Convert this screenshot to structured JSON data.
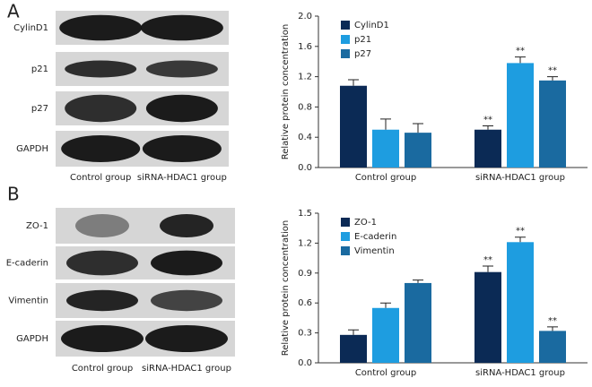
{
  "blots": [
    {
      "panel": "A",
      "rows": [
        "CylinD1",
        "p21",
        "p27",
        "GAPDH"
      ],
      "columns": [
        "Control group",
        "siRNA-HDAC1 group"
      ]
    },
    {
      "panel": "B",
      "rows": [
        "ZO-1",
        "E-caderin",
        "Vimentin",
        "GAPDH"
      ],
      "columns": [
        "Control group",
        "siRNA-HDAC1 group"
      ]
    }
  ],
  "chart_data": [
    {
      "type": "bar",
      "y_label": "Relative protein concentration",
      "categories": [
        "Control group",
        "siRNA-HDAC1 group"
      ],
      "series": [
        {
          "name": "CylinD1",
          "color": "#0b2a55",
          "values": [
            1.08,
            0.5
          ],
          "errors": [
            0.08,
            0.05
          ],
          "annotations": [
            null,
            "**"
          ]
        },
        {
          "name": "p21",
          "color": "#1e9de0",
          "values": [
            0.5,
            1.38
          ],
          "errors": [
            0.14,
            0.08
          ],
          "annotations": [
            null,
            "**"
          ]
        },
        {
          "name": "p27",
          "color": "#1a6aa0",
          "values": [
            0.46,
            1.15
          ],
          "errors": [
            0.12,
            0.05
          ],
          "annotations": [
            null,
            "**"
          ]
        }
      ],
      "ylim": [
        0,
        2.0
      ],
      "yticks": [
        {
          "value": 0,
          "label": "0.0"
        },
        0.4,
        0.8,
        1.2,
        1.6,
        {
          "value": 2.0,
          "label": "2.0"
        }
      ],
      "legend": "upper left"
    },
    {
      "type": "bar",
      "y_label": "Relative protein concentration",
      "categories": [
        "Control group",
        "siRNA-HDAC1 group"
      ],
      "series": [
        {
          "name": "ZO-1",
          "color": "#0b2a55",
          "values": [
            0.28,
            0.91
          ],
          "errors": [
            0.05,
            0.06
          ],
          "annotations": [
            null,
            "**"
          ]
        },
        {
          "name": "E-caderin",
          "color": "#1e9de0",
          "values": [
            0.55,
            1.21
          ],
          "errors": [
            0.05,
            0.05
          ],
          "annotations": [
            null,
            "**"
          ]
        },
        {
          "name": "Vimentin",
          "color": "#1a6aa0",
          "values": [
            0.8,
            0.32
          ],
          "errors": [
            0.03,
            0.04
          ],
          "annotations": [
            null,
            "**"
          ]
        }
      ],
      "ylim": [
        0,
        1.5
      ],
      "yticks": [
        {
          "value": 0,
          "label": "0.0"
        },
        0.3,
        0.6,
        0.9,
        1.2,
        {
          "value": 1.5,
          "label": "1.5"
        }
      ],
      "legend": "upper left"
    }
  ]
}
